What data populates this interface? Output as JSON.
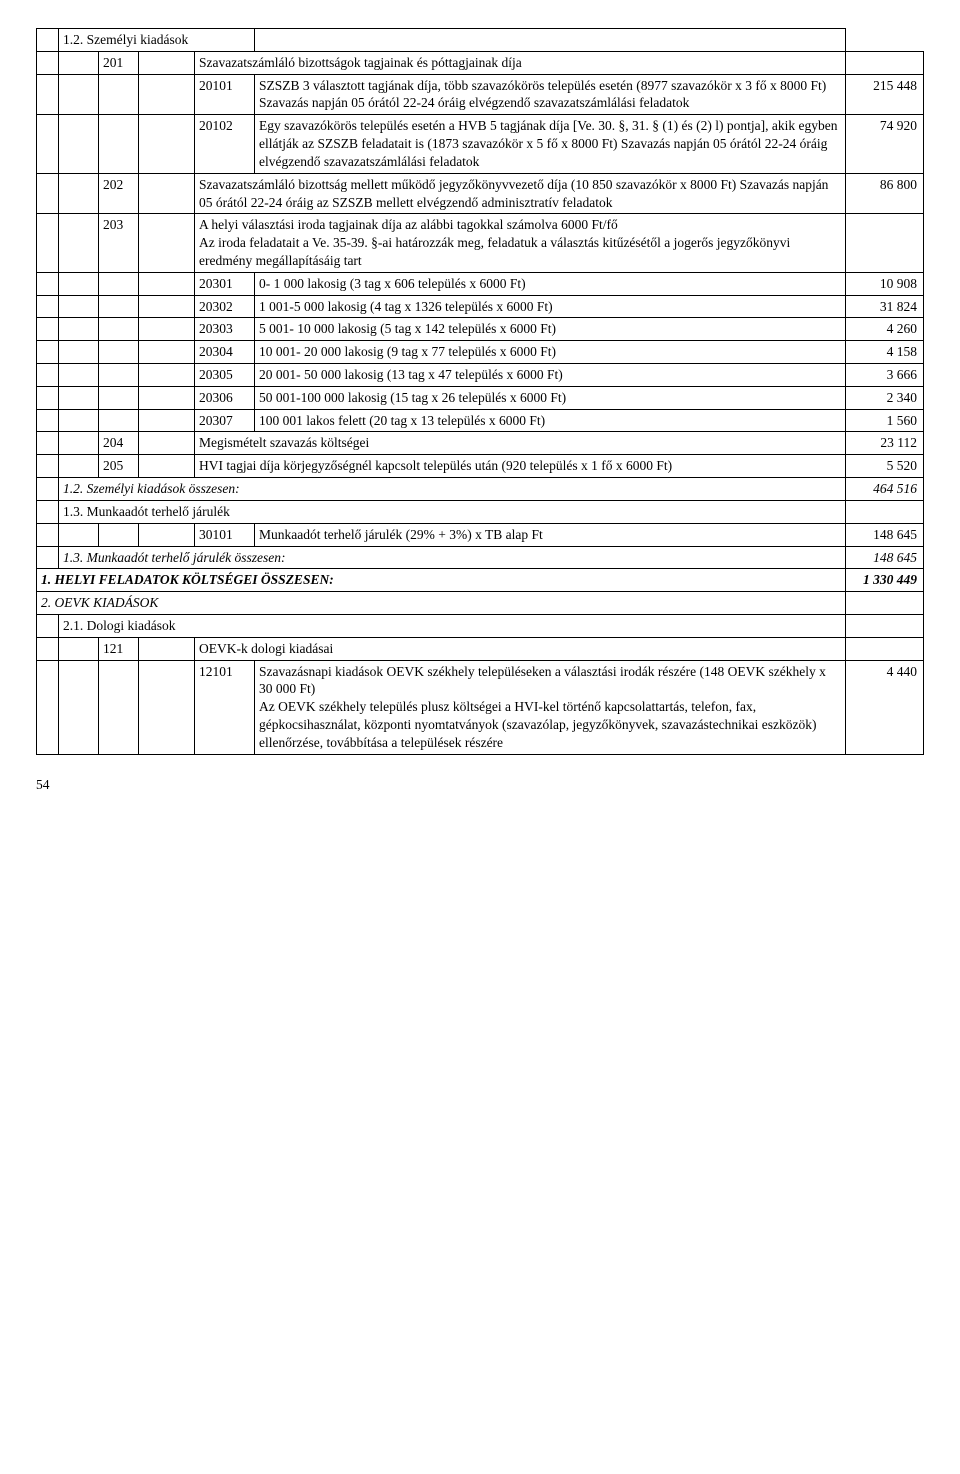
{
  "rows": [
    {
      "cells": [
        {
          "span": [
            1,
            1
          ]
        },
        {
          "span": [
            1,
            4
          ],
          "text": "1.2. Személyi kiadások"
        },
        {
          "span": [
            1,
            1
          ]
        }
      ]
    },
    {
      "cells": [
        {
          "span": [
            1,
            1
          ]
        },
        {
          "span": [
            1,
            1
          ]
        },
        {
          "span": [
            1,
            1
          ],
          "text": "201"
        },
        {
          "span": [
            1,
            1
          ]
        },
        {
          "span": [
            1,
            2
          ],
          "text": "Szavazatszámláló bizottságok tagjainak és póttagjainak díja"
        },
        {
          "span": [
            1,
            1
          ]
        }
      ]
    },
    {
      "cells": [
        {
          "span": [
            1,
            1
          ]
        },
        {
          "span": [
            1,
            1
          ]
        },
        {
          "span": [
            1,
            1
          ]
        },
        {
          "span": [
            1,
            1
          ]
        },
        {
          "span": [
            1,
            1
          ],
          "text": "20101"
        },
        {
          "span": [
            1,
            1
          ],
          "text": "SZSZB 3 választott tagjának díja, több szavazókörös település esetén (8977 szavazókör x 3 fő x 8000 Ft) Szavazás napján 05 órától 22-24 óráig elvégzendő szavazatszámlálási feladatok"
        },
        {
          "span": [
            1,
            1
          ],
          "text": "215 448"
        }
      ]
    },
    {
      "cells": [
        {
          "span": [
            1,
            1
          ]
        },
        {
          "span": [
            1,
            1
          ]
        },
        {
          "span": [
            1,
            1
          ]
        },
        {
          "span": [
            1,
            1
          ]
        },
        {
          "span": [
            1,
            1
          ],
          "text": "20102"
        },
        {
          "span": [
            1,
            1
          ],
          "text": "Egy szavazókörös település esetén a HVB 5 tagjának díja [Ve. 30. §, 31. § (1) és (2) l) pontja], akik egyben ellátják az SZSZB feladatait is (1873 szavazókör x 5 fő x 8000 Ft) Szavazás napján 05 órától 22-24 óráig elvégzendő szavazatszámlálási feladatok"
        },
        {
          "span": [
            1,
            1
          ],
          "text": "74 920"
        }
      ]
    },
    {
      "cells": [
        {
          "span": [
            1,
            1
          ]
        },
        {
          "span": [
            1,
            1
          ]
        },
        {
          "span": [
            1,
            1
          ],
          "text": "202"
        },
        {
          "span": [
            1,
            1
          ]
        },
        {
          "span": [
            1,
            2
          ],
          "text": "Szavazatszámláló bizottság mellett működő jegyzőkönyvvezető díja (10 850 szavazókör x 8000 Ft) Szavazás napján 05 órától 22-24 óráig az SZSZB mellett elvégzendő adminisztratív feladatok"
        },
        {
          "span": [
            1,
            1
          ],
          "text": "86 800"
        }
      ]
    },
    {
      "cells": [
        {
          "span": [
            1,
            1
          ]
        },
        {
          "span": [
            1,
            1
          ]
        },
        {
          "span": [
            1,
            1
          ],
          "text": "203"
        },
        {
          "span": [
            1,
            1
          ]
        },
        {
          "span": [
            1,
            2
          ],
          "text": "A helyi választási iroda tagjainak díja az alábbi tagokkal számolva 6000 Ft/fő\nAz iroda feladatait a Ve. 35-39. §-ai határozzák meg, feladatuk a választás kitűzésétől a jogerős jegyzőkönyvi eredmény megállapításáig tart"
        },
        {
          "span": [
            1,
            1
          ]
        }
      ]
    },
    {
      "cells": [
        {
          "span": [
            1,
            1
          ]
        },
        {
          "span": [
            1,
            1
          ]
        },
        {
          "span": [
            1,
            1
          ]
        },
        {
          "span": [
            1,
            1
          ]
        },
        {
          "span": [
            1,
            1
          ],
          "text": "20301"
        },
        {
          "span": [
            1,
            1
          ],
          "text": "0- 1 000 lakosig (3 tag x 606 település x 6000 Ft)"
        },
        {
          "span": [
            1,
            1
          ],
          "text": "10 908"
        }
      ]
    },
    {
      "cells": [
        {
          "span": [
            1,
            1
          ]
        },
        {
          "span": [
            1,
            1
          ]
        },
        {
          "span": [
            1,
            1
          ]
        },
        {
          "span": [
            1,
            1
          ]
        },
        {
          "span": [
            1,
            1
          ],
          "text": "20302"
        },
        {
          "span": [
            1,
            1
          ],
          "text": "1 001-5 000 lakosig (4 tag x 1326 település x 6000 Ft)"
        },
        {
          "span": [
            1,
            1
          ],
          "text": "31 824"
        }
      ]
    },
    {
      "cells": [
        {
          "span": [
            1,
            1
          ]
        },
        {
          "span": [
            1,
            1
          ]
        },
        {
          "span": [
            1,
            1
          ]
        },
        {
          "span": [
            1,
            1
          ]
        },
        {
          "span": [
            1,
            1
          ],
          "text": "20303"
        },
        {
          "span": [
            1,
            1
          ],
          "text": "5 001- 10 000 lakosig (5 tag x 142 település x 6000 Ft)"
        },
        {
          "span": [
            1,
            1
          ],
          "text": "4 260"
        }
      ]
    },
    {
      "cells": [
        {
          "span": [
            1,
            1
          ]
        },
        {
          "span": [
            1,
            1
          ]
        },
        {
          "span": [
            1,
            1
          ]
        },
        {
          "span": [
            1,
            1
          ]
        },
        {
          "span": [
            1,
            1
          ],
          "text": "20304"
        },
        {
          "span": [
            1,
            1
          ],
          "text": "10 001- 20 000 lakosig (9 tag x 77 település x 6000 Ft)"
        },
        {
          "span": [
            1,
            1
          ],
          "text": "4 158"
        }
      ]
    },
    {
      "cells": [
        {
          "span": [
            1,
            1
          ]
        },
        {
          "span": [
            1,
            1
          ]
        },
        {
          "span": [
            1,
            1
          ]
        },
        {
          "span": [
            1,
            1
          ]
        },
        {
          "span": [
            1,
            1
          ],
          "text": "20305"
        },
        {
          "span": [
            1,
            1
          ],
          "text": "20 001- 50 000 lakosig (13 tag x 47 település x 6000 Ft)"
        },
        {
          "span": [
            1,
            1
          ],
          "text": "3 666"
        }
      ]
    },
    {
      "cells": [
        {
          "span": [
            1,
            1
          ]
        },
        {
          "span": [
            1,
            1
          ]
        },
        {
          "span": [
            1,
            1
          ]
        },
        {
          "span": [
            1,
            1
          ]
        },
        {
          "span": [
            1,
            1
          ],
          "text": "20306"
        },
        {
          "span": [
            1,
            1
          ],
          "text": "50 001-100 000 lakosig (15 tag x 26 település x 6000 Ft)"
        },
        {
          "span": [
            1,
            1
          ],
          "text": "2 340"
        }
      ]
    },
    {
      "cells": [
        {
          "span": [
            1,
            1
          ]
        },
        {
          "span": [
            1,
            1
          ]
        },
        {
          "span": [
            1,
            1
          ]
        },
        {
          "span": [
            1,
            1
          ]
        },
        {
          "span": [
            1,
            1
          ],
          "text": "20307"
        },
        {
          "span": [
            1,
            1
          ],
          "text": "100 001 lakos felett (20 tag x 13 település x 6000 Ft)"
        },
        {
          "span": [
            1,
            1
          ],
          "text": "1 560"
        }
      ]
    },
    {
      "cells": [
        {
          "span": [
            1,
            1
          ]
        },
        {
          "span": [
            1,
            1
          ]
        },
        {
          "span": [
            1,
            1
          ],
          "text": "204"
        },
        {
          "span": [
            1,
            1
          ]
        },
        {
          "span": [
            1,
            2
          ],
          "text": "Megismételt szavazás költségei"
        },
        {
          "span": [
            1,
            1
          ],
          "text": "23 112"
        }
      ]
    },
    {
      "cells": [
        {
          "span": [
            1,
            1
          ]
        },
        {
          "span": [
            1,
            1
          ]
        },
        {
          "span": [
            1,
            1
          ],
          "text": "205"
        },
        {
          "span": [
            1,
            1
          ]
        },
        {
          "span": [
            1,
            2
          ],
          "text": "HVI tagjai díja körjegyzőségnél kapcsolt település után (920 település x 1 fő x 6000 Ft)"
        },
        {
          "span": [
            1,
            1
          ],
          "text": "5 520"
        }
      ]
    },
    {
      "cells": [
        {
          "span": [
            1,
            1
          ]
        },
        {
          "span": [
            1,
            5
          ],
          "text": "1.2. Személyi kiadások összesen:",
          "class": "italic"
        },
        {
          "span": [
            1,
            1
          ],
          "text": "464 516",
          "class": "italic"
        }
      ]
    },
    {
      "cells": [
        {
          "span": [
            1,
            1
          ]
        },
        {
          "span": [
            1,
            5
          ],
          "text": "1.3. Munkaadót terhelő járulék"
        },
        {
          "span": [
            1,
            1
          ]
        }
      ]
    },
    {
      "cells": [
        {
          "span": [
            1,
            1
          ]
        },
        {
          "span": [
            1,
            1
          ]
        },
        {
          "span": [
            1,
            1
          ]
        },
        {
          "span": [
            1,
            1
          ]
        },
        {
          "span": [
            1,
            1
          ],
          "text": "30101"
        },
        {
          "span": [
            1,
            1
          ],
          "text": "Munkaadót terhelő járulék (29% + 3%) x TB alap Ft"
        },
        {
          "span": [
            1,
            1
          ],
          "text": "148 645"
        }
      ]
    },
    {
      "cells": [
        {
          "span": [
            1,
            1
          ]
        },
        {
          "span": [
            1,
            5
          ],
          "text": "1.3. Munkaadót terhelő járulék összesen:",
          "class": "italic"
        },
        {
          "span": [
            1,
            1
          ],
          "text": "148 645",
          "class": "italic"
        }
      ]
    },
    {
      "cells": [
        {
          "span": [
            1,
            6
          ],
          "text": "1. HELYI FELADATOK KÖLTSÉGEI ÖSSZESEN:",
          "class": "bolditalic"
        },
        {
          "span": [
            1,
            1
          ],
          "text": "1 330 449",
          "class": "bolditalic"
        }
      ]
    },
    {
      "cells": [
        {
          "span": [
            1,
            6
          ],
          "text": "2. OEVK KIADÁSOK",
          "class": "italic"
        },
        {
          "span": [
            1,
            1
          ]
        }
      ]
    },
    {
      "cells": [
        {
          "span": [
            1,
            1
          ]
        },
        {
          "span": [
            1,
            5
          ],
          "text": "2.1. Dologi kiadások"
        },
        {
          "span": [
            1,
            1
          ]
        }
      ]
    },
    {
      "cells": [
        {
          "span": [
            1,
            1
          ]
        },
        {
          "span": [
            1,
            1
          ]
        },
        {
          "span": [
            1,
            1
          ],
          "text": "121"
        },
        {
          "span": [
            1,
            1
          ]
        },
        {
          "span": [
            1,
            2
          ],
          "text": "OEVK-k dologi kiadásai"
        },
        {
          "span": [
            1,
            1
          ]
        }
      ]
    },
    {
      "cells": [
        {
          "span": [
            1,
            1
          ]
        },
        {
          "span": [
            1,
            1
          ]
        },
        {
          "span": [
            1,
            1
          ]
        },
        {
          "span": [
            1,
            1
          ]
        },
        {
          "span": [
            1,
            1
          ],
          "text": "12101"
        },
        {
          "span": [
            1,
            1
          ],
          "text": "Szavazásnapi kiadások OEVK székhely településeken a választási irodák részére (148 OEVK székhely x 30 000 Ft)\nAz OEVK székhely település plusz költségei a HVI-kel történő kapcsolattartás, telefon, fax, gépkocsihasználat, központi nyomtatványok (szavazólap, jegyzőkönyvek, szavazástechnikai eszközök) ellenőrzése, továbbítása a települések részére"
        },
        {
          "span": [
            1,
            1
          ],
          "text": "4 440"
        }
      ]
    }
  ],
  "colClasses": [
    "c1",
    "c2",
    "c3",
    "c4",
    "c5",
    "c6",
    "c7"
  ],
  "pageNumber": "54"
}
